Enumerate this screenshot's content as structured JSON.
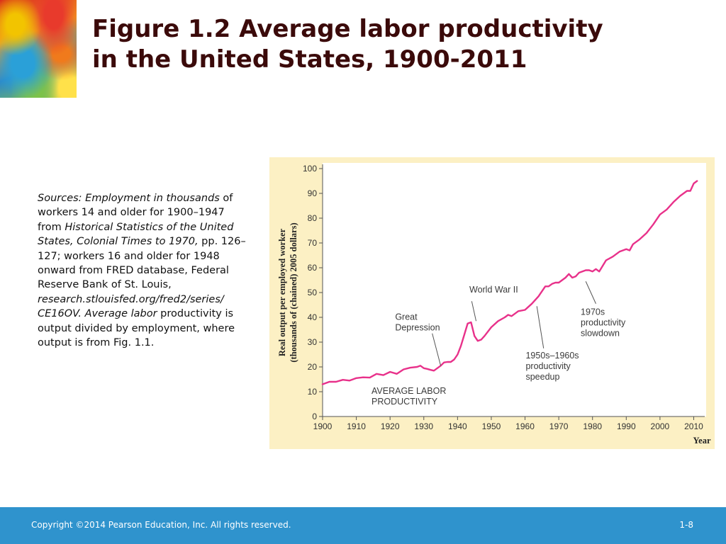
{
  "slide": {
    "title_line1": "Figure 1.2  Average labor productivity",
    "title_line2": "in the United States, 1900-2011",
    "sources": [
      {
        "text": "Sources: Employment in thousands",
        "italic": true
      },
      {
        "text": " of workers 14 and older for 1900–1947 from ",
        "italic": false
      },
      {
        "text": "Historical Statistics of the United States, Colonial Times to 1970,",
        "italic": true
      },
      {
        "text": " pp. 126–127; workers 16 and older for 1948 onward from FRED database, Federal Reserve Bank of St. Louis, ",
        "italic": false
      },
      {
        "text": "research.stlouisfed.org/fred2/series/ CE16OV. Average labor",
        "italic": true
      },
      {
        "text": " productivity is output divided by employment, where output is from Fig. 1.1.",
        "italic": false
      }
    ],
    "footer_copyright": "Copyright ©2014 Pearson Education, Inc. All rights reserved.",
    "footer_page": "1-8"
  },
  "colors": {
    "line": "#e8318a",
    "panel_bg": "#fcf0c4",
    "title": "#3b0a0a",
    "footer_bg": "#2f93cd"
  },
  "chart_data": {
    "type": "line",
    "title": "",
    "xlabel": "Year",
    "ylabel_line1": "Real output per employed worker",
    "ylabel_line2": "(thousands of (chained) 2005 dollars)",
    "xlim": [
      1900,
      2012
    ],
    "ylim": [
      0,
      100
    ],
    "x_ticks": [
      1900,
      1910,
      1920,
      1930,
      1940,
      1950,
      1960,
      1970,
      1980,
      1990,
      2000,
      2010
    ],
    "y_ticks": [
      0,
      10,
      20,
      30,
      40,
      50,
      60,
      70,
      80,
      90,
      100
    ],
    "grid": false,
    "series": [
      {
        "name": "AVERAGE LABOR PRODUCTIVITY",
        "x": [
          1900,
          1902,
          1904,
          1906,
          1908,
          1910,
          1912,
          1914,
          1916,
          1918,
          1920,
          1922,
          1924,
          1926,
          1928,
          1929,
          1930,
          1931,
          1932,
          1933,
          1934,
          1935,
          1936,
          1937,
          1938,
          1939,
          1940,
          1941,
          1942,
          1943,
          1944,
          1945,
          1946,
          1947,
          1948,
          1950,
          1952,
          1954,
          1955,
          1956,
          1958,
          1960,
          1962,
          1964,
          1966,
          1967,
          1968,
          1969,
          1970,
          1972,
          1973,
          1974,
          1975,
          1976,
          1978,
          1979,
          1980,
          1981,
          1982,
          1984,
          1986,
          1988,
          1990,
          1991,
          1992,
          1994,
          1996,
          1998,
          2000,
          2002,
          2004,
          2006,
          2008,
          2009,
          2010,
          2011
        ],
        "y": [
          13.0,
          14.0,
          14.0,
          14.8,
          14.5,
          15.5,
          15.8,
          15.7,
          17.2,
          16.7,
          18.0,
          17.2,
          19.0,
          19.7,
          20.0,
          20.5,
          19.5,
          19.2,
          18.8,
          18.5,
          19.5,
          20.5,
          21.8,
          22.0,
          22.0,
          23.0,
          25.0,
          28.5,
          33.0,
          37.5,
          38.0,
          32.5,
          30.5,
          31.0,
          32.5,
          36.0,
          38.5,
          40.0,
          41.0,
          40.5,
          42.5,
          43.0,
          45.5,
          48.5,
          52.5,
          52.5,
          53.5,
          54.0,
          54.0,
          56.0,
          57.5,
          56.0,
          56.5,
          58.0,
          59.0,
          59.0,
          58.5,
          59.5,
          58.5,
          63.0,
          64.5,
          66.5,
          67.5,
          67.0,
          69.5,
          71.5,
          74.0,
          77.5,
          81.5,
          83.5,
          86.5,
          89.0,
          91.0,
          91.0,
          94.0,
          95.0
        ]
      }
    ],
    "annotations": [
      {
        "lines": [
          "World War II"
        ],
        "text_at": [
          1943.5,
          50
        ],
        "pointer_from": [
          1944.2,
          46.5
        ],
        "pointer_to": [
          1945.5,
          38.5
        ]
      },
      {
        "lines": [
          "Great",
          "Depression"
        ],
        "text_at": [
          1921.5,
          39
        ],
        "pointer_from": [
          1932.5,
          33.5
        ],
        "pointer_to": [
          1935.0,
          20.5
        ]
      },
      {
        "lines": [
          "1950s–1960s",
          "productivity",
          "speedup"
        ],
        "text_at": [
          1960.2,
          23.5
        ],
        "pointer_from": [
          1965.5,
          27.5
        ],
        "pointer_to": [
          1963.5,
          44.5
        ]
      },
      {
        "lines": [
          "1970s",
          "productivity",
          "slowdown"
        ],
        "text_at": [
          1976.5,
          41
        ],
        "pointer_from": [
          1981.0,
          45.5
        ],
        "pointer_to": [
          1978.0,
          54.5
        ]
      },
      {
        "lines": [
          "AVERAGE LABOR",
          "PRODUCTIVITY"
        ],
        "text_at": [
          1914.5,
          9.2
        ],
        "pointer_from": null,
        "pointer_to": null
      }
    ]
  }
}
